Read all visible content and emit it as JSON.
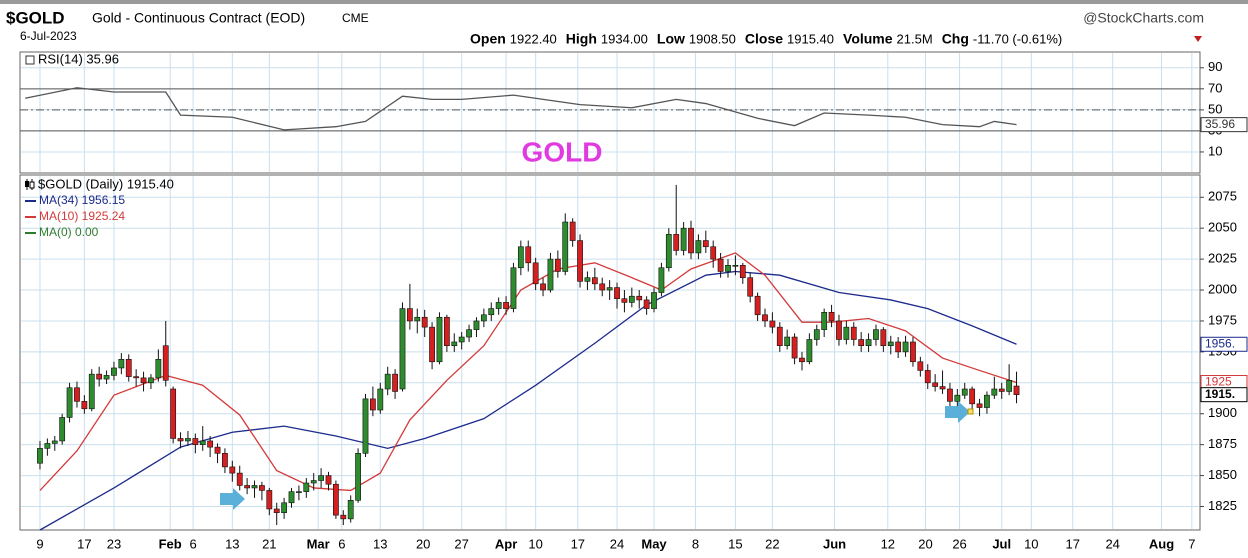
{
  "header": {
    "symbol": "$GOLD",
    "name": "Gold - Continuous Contract (EOD)",
    "exchange": "CME",
    "source": "@StockCharts.com",
    "date": "6-Jul-2023",
    "quote": [
      {
        "label": "Open",
        "value": "1922.40"
      },
      {
        "label": "High",
        "value": "1934.00"
      },
      {
        "label": "Low",
        "value": "1908.50"
      },
      {
        "label": "Close",
        "value": "1915.40"
      },
      {
        "label": "Volume",
        "value": "21.5M"
      },
      {
        "label": "Chg",
        "value": "-11.70 (-0.61%)"
      }
    ]
  },
  "chart_data": [
    {
      "type": "line",
      "title": "RSI(14) 35.96",
      "annotation": "GOLD",
      "xlim": [
        -2.7,
        156.8
      ],
      "ylim": [
        -10,
        105
      ],
      "yticks": [
        10,
        30,
        50,
        70,
        90
      ],
      "ref_lines": [
        30,
        50,
        70
      ],
      "series": [
        {
          "color": "#555555",
          "value_label": "35.96",
          "x": [
            -2,
            5,
            10,
            17,
            19,
            26,
            33,
            40,
            44,
            49,
            53,
            57,
            64,
            73,
            80,
            86,
            90,
            97,
            102,
            106,
            112,
            117,
            122,
            127,
            129,
            132
          ],
          "values": [
            61,
            71,
            67,
            67,
            45,
            43,
            31,
            34,
            39,
            63,
            60,
            60,
            64,
            55,
            52,
            60,
            56,
            42,
            35,
            47,
            45,
            43,
            36,
            34,
            39,
            35.96
          ]
        }
      ]
    },
    {
      "type": "candlestick",
      "title": "$GOLD (Daily) 1915.40",
      "value_label": "1915.",
      "up_color": "#2e8b2e",
      "down_color": "#d42020",
      "xlim": [
        -2.7,
        156.8
      ],
      "ylim": [
        1806,
        2093
      ],
      "yticks": [
        1825,
        1850,
        1875,
        1900,
        1925,
        1950,
        1975,
        2000,
        2025,
        2050,
        2075
      ],
      "xticks": [
        {
          "value": 0,
          "label": "9"
        },
        {
          "value": 6,
          "label": "17"
        },
        {
          "value": 10,
          "label": "23"
        },
        {
          "value": 17.6,
          "label": "Feb"
        },
        {
          "value": 20.7,
          "label": "6"
        },
        {
          "value": 26,
          "label": "13"
        },
        {
          "value": 31,
          "label": "21"
        },
        {
          "value": 37.6,
          "label": "Mar"
        },
        {
          "value": 40.8,
          "label": "6"
        },
        {
          "value": 46,
          "label": "13"
        },
        {
          "value": 51.8,
          "label": "20"
        },
        {
          "value": 57,
          "label": "27"
        },
        {
          "value": 63,
          "label": "Apr"
        },
        {
          "value": 67,
          "label": "10"
        },
        {
          "value": 72.7,
          "label": "17"
        },
        {
          "value": 78,
          "label": "24"
        },
        {
          "value": 83,
          "label": "May"
        },
        {
          "value": 88.6,
          "label": "8"
        },
        {
          "value": 94,
          "label": "15"
        },
        {
          "value": 99,
          "label": "22"
        },
        {
          "value": 107.4,
          "label": "Jun"
        },
        {
          "value": 114.6,
          "label": "12"
        },
        {
          "value": 119.7,
          "label": "20"
        },
        {
          "value": 124.3,
          "label": "26"
        },
        {
          "value": 130,
          "label": "Jul"
        },
        {
          "value": 134,
          "label": "10"
        },
        {
          "value": 139.6,
          "label": "17"
        },
        {
          "value": 145,
          "label": "24"
        },
        {
          "value": 151.6,
          "label": "Aug"
        },
        {
          "value": 155.7,
          "label": "7"
        }
      ],
      "ohlc": [
        [
          0,
          1860,
          1878,
          1855,
          1872
        ],
        [
          1,
          1872,
          1880,
          1866,
          1876
        ],
        [
          2,
          1876,
          1882,
          1870,
          1878
        ],
        [
          3,
          1878,
          1900,
          1875,
          1897
        ],
        [
          4,
          1897,
          1925,
          1893,
          1921
        ],
        [
          5,
          1921,
          1926,
          1905,
          1910
        ],
        [
          6,
          1910,
          1915,
          1900,
          1904
        ],
        [
          7,
          1904,
          1936,
          1902,
          1932
        ],
        [
          8,
          1932,
          1938,
          1922,
          1928
        ],
        [
          9,
          1928,
          1935,
          1924,
          1931
        ],
        [
          10,
          1931,
          1942,
          1927,
          1937
        ],
        [
          11,
          1937,
          1949,
          1932,
          1944
        ],
        [
          12,
          1944,
          1948,
          1926,
          1930
        ],
        [
          13,
          1930,
          1936,
          1922,
          1929
        ],
        [
          14,
          1929,
          1934,
          1918,
          1925
        ],
        [
          15,
          1925,
          1932,
          1920,
          1929
        ],
        [
          16,
          1929,
          1952,
          1926,
          1944
        ],
        [
          17,
          1955,
          1975,
          1922,
          1927
        ],
        [
          18,
          1920,
          1922,
          1876,
          1880
        ],
        [
          19,
          1880,
          1885,
          1872,
          1878
        ],
        [
          20,
          1878,
          1886,
          1874,
          1880
        ],
        [
          21,
          1880,
          1884,
          1868,
          1875
        ],
        [
          22,
          1875,
          1890,
          1870,
          1878
        ],
        [
          23,
          1878,
          1882,
          1865,
          1873
        ],
        [
          24,
          1873,
          1876,
          1860,
          1868
        ],
        [
          25,
          1868,
          1872,
          1852,
          1857
        ],
        [
          26,
          1857,
          1862,
          1845,
          1852
        ],
        [
          27,
          1852,
          1858,
          1838,
          1842
        ],
        [
          28,
          1842,
          1848,
          1835,
          1840
        ],
        [
          29,
          1840,
          1846,
          1832,
          1842
        ],
        [
          30,
          1842,
          1845,
          1830,
          1838
        ],
        [
          31,
          1838,
          1840,
          1818,
          1823
        ],
        [
          32,
          1823,
          1828,
          1810,
          1820
        ],
        [
          33,
          1820,
          1832,
          1815,
          1828
        ],
        [
          34,
          1828,
          1840,
          1824,
          1837
        ],
        [
          35,
          1837,
          1842,
          1830,
          1837
        ],
        [
          36,
          1837,
          1848,
          1832,
          1844
        ],
        [
          37,
          1844,
          1852,
          1838,
          1846
        ],
        [
          38,
          1846,
          1856,
          1840,
          1850
        ],
        [
          39,
          1850,
          1853,
          1838,
          1843
        ],
        [
          40,
          1843,
          1846,
          1815,
          1818
        ],
        [
          41,
          1818,
          1822,
          1810,
          1815
        ],
        [
          42,
          1815,
          1834,
          1812,
          1830
        ],
        [
          43,
          1830,
          1872,
          1828,
          1868
        ],
        [
          44,
          1868,
          1916,
          1865,
          1912
        ],
        [
          45,
          1912,
          1922,
          1898,
          1903
        ],
        [
          46,
          1903,
          1925,
          1900,
          1920
        ],
        [
          47,
          1920,
          1938,
          1915,
          1932
        ],
        [
          48,
          1932,
          1936,
          1912,
          1918
        ],
        [
          49,
          1920,
          1990,
          1918,
          1985
        ],
        [
          50,
          1985,
          2005,
          1968,
          1975
        ],
        [
          51,
          1975,
          1985,
          1965,
          1978
        ],
        [
          52,
          1978,
          1984,
          1962,
          1970
        ],
        [
          53,
          1970,
          1974,
          1936,
          1942
        ],
        [
          54,
          1942,
          1982,
          1940,
          1978
        ],
        [
          55,
          1978,
          1980,
          1950,
          1955
        ],
        [
          56,
          1955,
          1965,
          1950,
          1958
        ],
        [
          57,
          1958,
          1966,
          1952,
          1962
        ],
        [
          58,
          1962,
          1972,
          1958,
          1968
        ],
        [
          59,
          1968,
          1978,
          1962,
          1975
        ],
        [
          60,
          1975,
          1985,
          1970,
          1980
        ],
        [
          61,
          1980,
          1990,
          1975,
          1985
        ],
        [
          62,
          1985,
          1994,
          1980,
          1990
        ],
        [
          63,
          1990,
          1995,
          1980,
          1985
        ],
        [
          64,
          1985,
          2022,
          1982,
          2018
        ],
        [
          65,
          2018,
          2040,
          2012,
          2035
        ],
        [
          66,
          2035,
          2040,
          2015,
          2022
        ],
        [
          67,
          2022,
          2026,
          2000,
          2005
        ],
        [
          68,
          2005,
          2010,
          1995,
          2000
        ],
        [
          69,
          2000,
          2030,
          1998,
          2025
        ],
        [
          70,
          2025,
          2032,
          2010,
          2015
        ],
        [
          71,
          2015,
          2062,
          2012,
          2055
        ],
        [
          72,
          2055,
          2058,
          2035,
          2040
        ],
        [
          73,
          2040,
          2045,
          2002,
          2007
        ],
        [
          74,
          2007,
          2015,
          2000,
          2010
        ],
        [
          75,
          2010,
          2018,
          2000,
          2005
        ],
        [
          76,
          2005,
          2010,
          1995,
          2000
        ],
        [
          77,
          2000,
          2008,
          1992,
          2002
        ],
        [
          78,
          2002,
          2006,
          1985,
          1993
        ],
        [
          79,
          1993,
          2000,
          1982,
          1990
        ],
        [
          80,
          1990,
          2002,
          1986,
          1995
        ],
        [
          81,
          1995,
          2000,
          1985,
          1992
        ],
        [
          82,
          1992,
          1995,
          1980,
          1985
        ],
        [
          83,
          1985,
          2002,
          1982,
          1998
        ],
        [
          84,
          1998,
          2022,
          1995,
          2018
        ],
        [
          85,
          2018,
          2050,
          2015,
          2045
        ],
        [
          86,
          2045,
          2085,
          2028,
          2032
        ],
        [
          87,
          2032,
          2055,
          2028,
          2050
        ],
        [
          88,
          2050,
          2056,
          2025,
          2030
        ],
        [
          89,
          2030,
          2045,
          2025,
          2040
        ],
        [
          90,
          2040,
          2048,
          2030,
          2035
        ],
        [
          91,
          2035,
          2040,
          2018,
          2025
        ],
        [
          92,
          2025,
          2030,
          2010,
          2015
        ],
        [
          93,
          2015,
          2025,
          2010,
          2020
        ],
        [
          94,
          2020,
          2028,
          2012,
          2020
        ],
        [
          95,
          2020,
          2022,
          2005,
          2010
        ],
        [
          96,
          2010,
          2014,
          1990,
          1995
        ],
        [
          97,
          1995,
          1998,
          1975,
          1980
        ],
        [
          98,
          1980,
          1985,
          1970,
          1975
        ],
        [
          99,
          1975,
          1982,
          1965,
          1970
        ],
        [
          100,
          1970,
          1974,
          1950,
          1955
        ],
        [
          101,
          1955,
          1968,
          1952,
          1962
        ],
        [
          102,
          1962,
          1965,
          1940,
          1945
        ],
        [
          103,
          1945,
          1950,
          1935,
          1942
        ],
        [
          104,
          1942,
          1965,
          1940,
          1960
        ],
        [
          105,
          1960,
          1972,
          1955,
          1968
        ],
        [
          106,
          1968,
          1985,
          1962,
          1982
        ],
        [
          107,
          1982,
          1988,
          1970,
          1975
        ],
        [
          108,
          1975,
          1980,
          1955,
          1960
        ],
        [
          109,
          1960,
          1975,
          1956,
          1970
        ],
        [
          110,
          1970,
          1974,
          1955,
          1960
        ],
        [
          111,
          1960,
          1966,
          1950,
          1955
        ],
        [
          112,
          1955,
          1965,
          1950,
          1960
        ],
        [
          113,
          1960,
          1972,
          1955,
          1968
        ],
        [
          114,
          1968,
          1970,
          1950,
          1955
        ],
        [
          115,
          1955,
          1963,
          1948,
          1958
        ],
        [
          116,
          1958,
          1962,
          1945,
          1950
        ],
        [
          117,
          1950,
          1963,
          1946,
          1958
        ],
        [
          118,
          1958,
          1962,
          1938,
          1942
        ],
        [
          119,
          1942,
          1946,
          1930,
          1935
        ],
        [
          120,
          1935,
          1940,
          1920,
          1925
        ],
        [
          121,
          1925,
          1932,
          1918,
          1922
        ],
        [
          122,
          1922,
          1935,
          1916,
          1920
        ],
        [
          123,
          1920,
          1925,
          1905,
          1910
        ],
        [
          124,
          1910,
          1920,
          1906,
          1915
        ],
        [
          125,
          1915,
          1925,
          1912,
          1920
        ],
        [
          126,
          1920,
          1922,
          1904,
          1908
        ],
        [
          127,
          1908,
          1912,
          1898,
          1905
        ],
        [
          128,
          1905,
          1918,
          1900,
          1915
        ],
        [
          129,
          1915,
          1930,
          1912,
          1920
        ],
        [
          130,
          1920,
          1925,
          1912,
          1918
        ],
        [
          131,
          1918,
          1940,
          1915,
          1927
        ],
        [
          132,
          1922.4,
          1934,
          1908.5,
          1915.4
        ]
      ],
      "series": [
        {
          "name": "MA(34) 1956.15",
          "color": "#1c2a8c",
          "value_label": "1956.",
          "x": [
            0,
            10,
            19,
            26,
            33,
            40,
            47,
            52,
            60,
            67,
            75,
            82,
            90,
            94,
            100,
            108,
            115,
            120,
            126,
            132
          ],
          "values": [
            1806,
            1840,
            1873,
            1885,
            1890,
            1882,
            1872,
            1880,
            1896,
            1923,
            1957,
            1988,
            2012,
            2015,
            2012,
            1998,
            1992,
            1985,
            1971,
            1956.15
          ]
        },
        {
          "name": "MA(10) 1925.24",
          "color": "#d43a3a",
          "value_label": "1925",
          "x": [
            0,
            5,
            10,
            17,
            22,
            27,
            32,
            37,
            42,
            46,
            50,
            55,
            60,
            65,
            70,
            75,
            80,
            84,
            88,
            94,
            98,
            103,
            107,
            112,
            117,
            122,
            127,
            132
          ],
          "values": [
            1838,
            1870,
            1915,
            1931,
            1923,
            1899,
            1854,
            1840,
            1838,
            1852,
            1895,
            1927,
            1955,
            2000,
            2017,
            2022,
            2010,
            2000,
            2017,
            2030,
            2012,
            1974,
            1974,
            1977,
            1967,
            1945,
            1935,
            1925.24
          ]
        },
        {
          "name": "MA(0) 0.00",
          "color": "#2e7d2e"
        }
      ]
    }
  ]
}
